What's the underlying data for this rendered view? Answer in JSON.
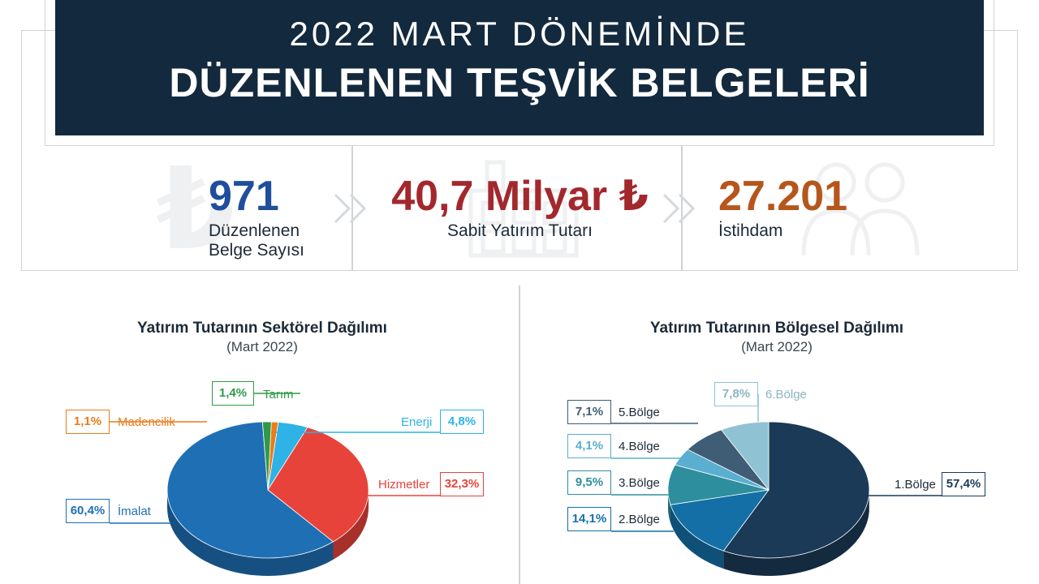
{
  "header": {
    "line1": "2022 MART DÖNEMİNDE",
    "line2": "DÜZENLENEN TEŞVİK BELGELERİ"
  },
  "stats": [
    {
      "value": "971",
      "label_line1": "Düzenlenen",
      "label_line2": "Belge Sayısı",
      "color": "#1f4e9c",
      "icon": "lira-icon"
    },
    {
      "value": "40,7 Milyar ₺",
      "label_line1": "Sabit Yatırım Tutarı",
      "label_line2": "",
      "color": "#a3282d",
      "icon": "factory-icon"
    },
    {
      "value": "27.201",
      "label_line1": "İstihdam",
      "label_line2": "",
      "color": "#b5561c",
      "icon": "people-icon"
    }
  ],
  "chart_data": [
    {
      "type": "pie",
      "title": "Yatırım Tutarının Sektörel Dağılımı",
      "subtitle": "(Mart 2022)",
      "slices": [
        {
          "name": "İmalat",
          "value": 60.4,
          "label": "60,4%",
          "color": "#1f6fb5"
        },
        {
          "name": "Tarım",
          "value": 1.4,
          "label": "1,4%",
          "color": "#2e9a49"
        },
        {
          "name": "Madencilik",
          "value": 1.1,
          "label": "1,1%",
          "color": "#ec7b1c"
        },
        {
          "name": "Enerji",
          "value": 4.8,
          "label": "4,8%",
          "color": "#2fb3e6"
        },
        {
          "name": "Hizmetler",
          "value": 32.3,
          "label": "32,3%",
          "color": "#e8433a"
        }
      ]
    },
    {
      "type": "pie",
      "title": "Yatırım Tutarının Bölgesel Dağılımı",
      "subtitle": "(Mart 2022)",
      "slices": [
        {
          "name": "1.Bölge",
          "value": 57.4,
          "label": "57,4%",
          "color": "#1b3a57"
        },
        {
          "name": "2.Bölge",
          "value": 14.1,
          "label": "14,1%",
          "color": "#146fa6"
        },
        {
          "name": "3.Bölge",
          "value": 9.5,
          "label": "9,5%",
          "color": "#2d8f9e"
        },
        {
          "name": "4.Bölge",
          "value": 4.1,
          "label": "4,1%",
          "color": "#5aaed0"
        },
        {
          "name": "5.Bölge",
          "value": 7.1,
          "label": "7,1%",
          "color": "#3f5e75"
        },
        {
          "name": "6.Bölge",
          "value": 7.8,
          "label": "7,8%",
          "color": "#8fc3d4"
        }
      ]
    }
  ]
}
